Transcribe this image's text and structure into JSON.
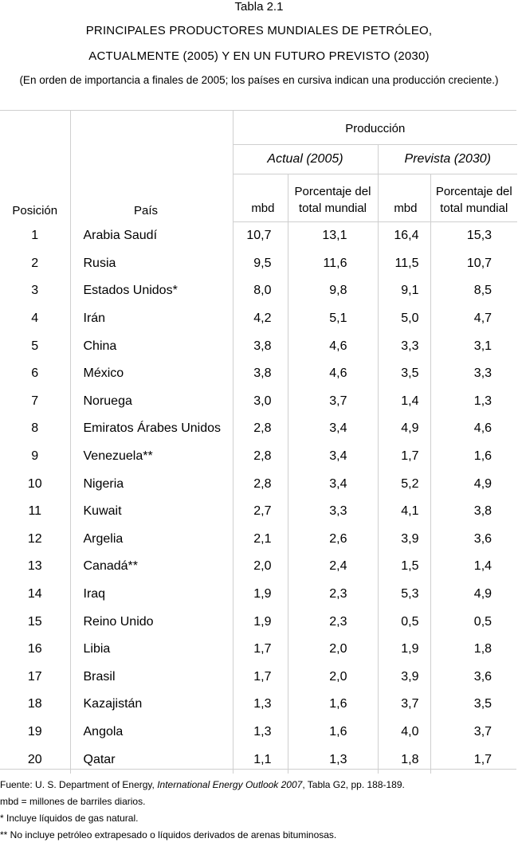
{
  "header": {
    "table_label": "Tabla 2.1",
    "title_line1": "PRINCIPALES PRODUCTORES MUNDIALES DE PETRÓLEO,",
    "title_line2": "ACTUALMENTE (2005) Y EN UN FUTURO PREVISTO (2030)",
    "subtitle": "(En orden de importancia a finales de 2005; los países en cursiva indican una producción creciente.)"
  },
  "table": {
    "group_header": "Producción",
    "sub_current": "Actual (2005)",
    "sub_future": "Prevista (2030)",
    "col_position": "Posición",
    "col_country": "País",
    "col_mbd": "mbd",
    "col_pct_line1": "Porcentaje del",
    "col_pct_line2": "total mundial",
    "rows": [
      {
        "pos": "1",
        "country": "Arabia Saudí",
        "mbd_2005": "10,7",
        "pct_2005": "13,1",
        "mbd_2030": "16,4",
        "pct_2030": "15,3"
      },
      {
        "pos": "2",
        "country": "Rusia",
        "mbd_2005": "9,5",
        "pct_2005": "11,6",
        "mbd_2030": "11,5",
        "pct_2030": "10,7"
      },
      {
        "pos": "3",
        "country": "Estados Unidos*",
        "mbd_2005": "8,0",
        "pct_2005": "9,8",
        "mbd_2030": "9,1",
        "pct_2030": "8,5"
      },
      {
        "pos": "4",
        "country": "Irán",
        "mbd_2005": "4,2",
        "pct_2005": "5,1",
        "mbd_2030": "5,0",
        "pct_2030": "4,7"
      },
      {
        "pos": "5",
        "country": "China",
        "mbd_2005": "3,8",
        "pct_2005": "4,6",
        "mbd_2030": "3,3",
        "pct_2030": "3,1"
      },
      {
        "pos": "6",
        "country": "México",
        "mbd_2005": "3,8",
        "pct_2005": "4,6",
        "mbd_2030": "3,5",
        "pct_2030": "3,3"
      },
      {
        "pos": "7",
        "country": "Noruega",
        "mbd_2005": "3,0",
        "pct_2005": "3,7",
        "mbd_2030": "1,4",
        "pct_2030": "1,3"
      },
      {
        "pos": "8",
        "country": "Emiratos Árabes Unidos",
        "mbd_2005": "2,8",
        "pct_2005": "3,4",
        "mbd_2030": "4,9",
        "pct_2030": "4,6"
      },
      {
        "pos": "9",
        "country": "Venezuela**",
        "mbd_2005": "2,8",
        "pct_2005": "3,4",
        "mbd_2030": "1,7",
        "pct_2030": "1,6"
      },
      {
        "pos": "10",
        "country": "Nigeria",
        "mbd_2005": "2,8",
        "pct_2005": "3,4",
        "mbd_2030": "5,2",
        "pct_2030": "4,9"
      },
      {
        "pos": "11",
        "country": "Kuwait",
        "mbd_2005": "2,7",
        "pct_2005": "3,3",
        "mbd_2030": "4,1",
        "pct_2030": "3,8"
      },
      {
        "pos": "12",
        "country": "Argelia",
        "mbd_2005": "2,1",
        "pct_2005": "2,6",
        "mbd_2030": "3,9",
        "pct_2030": "3,6"
      },
      {
        "pos": "13",
        "country": "Canadá**",
        "mbd_2005": "2,0",
        "pct_2005": "2,4",
        "mbd_2030": "1,5",
        "pct_2030": "1,4"
      },
      {
        "pos": "14",
        "country": "Iraq",
        "mbd_2005": "1,9",
        "pct_2005": "2,3",
        "mbd_2030": "5,3",
        "pct_2030": "4,9"
      },
      {
        "pos": "15",
        "country": "Reino Unido",
        "mbd_2005": "1,9",
        "pct_2005": "2,3",
        "mbd_2030": "0,5",
        "pct_2030": "0,5"
      },
      {
        "pos": "16",
        "country": "Libia",
        "mbd_2005": "1,7",
        "pct_2005": "2,0",
        "mbd_2030": "1,9",
        "pct_2030": "1,8"
      },
      {
        "pos": "17",
        "country": "Brasil",
        "mbd_2005": "1,7",
        "pct_2005": "2,0",
        "mbd_2030": "3,9",
        "pct_2030": "3,6"
      },
      {
        "pos": "18",
        "country": "Kazajistán",
        "mbd_2005": "1,3",
        "pct_2005": "1,6",
        "mbd_2030": "3,7",
        "pct_2030": "3,5"
      },
      {
        "pos": "19",
        "country": "Angola",
        "mbd_2005": "1,3",
        "pct_2005": "1,6",
        "mbd_2030": "4,0",
        "pct_2030": "3,7"
      },
      {
        "pos": "20",
        "country": "Qatar",
        "mbd_2005": "1,1",
        "pct_2005": "1,3",
        "mbd_2030": "1,8",
        "pct_2030": "1,7"
      }
    ]
  },
  "footnotes": {
    "source_prefix": "Fuente: U. S. Department of Energy, ",
    "source_publication": "International Energy Outlook 2007",
    "source_suffix": ", Tabla G2, pp. 188-189.",
    "note_mbd": "mbd = millones de barriles diarios.",
    "note_star": "* Incluye líquidos de gas natural.",
    "note_double_star": "** No incluye petróleo extrapesado o líquidos derivados de arenas bituminosas."
  }
}
